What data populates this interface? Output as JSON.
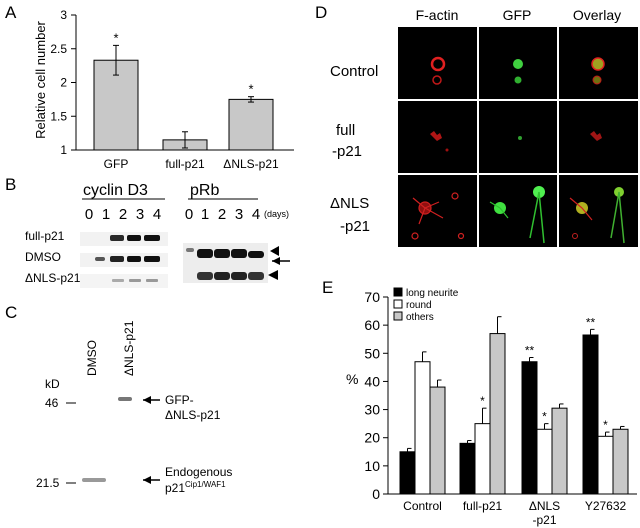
{
  "panels": {
    "A": {
      "letter": "A",
      "ylabel": "Relative cell number",
      "significance": "*"
    },
    "B": {
      "letter": "B",
      "cyclin_title": "cyclin D3",
      "prb_title": "pRb",
      "days_label": "(days)",
      "lane_numbers": [
        "0",
        "1",
        "2",
        "3",
        "4"
      ],
      "row_labels": [
        "full-p21",
        "DMSO",
        "ΔNLS-p21"
      ]
    },
    "C": {
      "letter": "C",
      "lane_dmso": "DMSO",
      "lane_dnls": "ΔNLS-p21",
      "kd_label": "kD",
      "marker_46": "46",
      "marker_21_5": "21.5",
      "band_gfp_line1": "GFP-",
      "band_gfp_line2": "ΔNLS-p21",
      "band_endo_line1": "Endogenous",
      "band_endo_base": "p21",
      "band_endo_sup": "Cip1/WAF1"
    },
    "D": {
      "letter": "D",
      "col_headers": [
        "F-actin",
        "GFP",
        "Overlay"
      ],
      "row_label_control": "Control",
      "row_label_full_1": "full",
      "row_label_full_2": "-p21",
      "row_label_dnls_1": "ΔNLS",
      "row_label_dnls_2": "-p21"
    },
    "E": {
      "letter": "E",
      "ylabel": "%",
      "cat_line1": [
        "Control",
        "full-p21",
        "ΔNLS",
        "Y27632"
      ],
      "cat_line2": [
        "",
        "",
        "-p21",
        ""
      ],
      "stars": {
        "full_round": "*",
        "dnls_long": "**",
        "dnls_round": "*",
        "y_long": "**",
        "y_round": "*"
      }
    }
  },
  "chart_data": [
    {
      "id": "A",
      "type": "bar",
      "categories": [
        "GFP",
        "full-p21",
        "ΔNLS-p21"
      ],
      "values": [
        2.33,
        1.15,
        1.75
      ],
      "errors": [
        0.22,
        0.12,
        0.04
      ],
      "ylabel": "Relative cell number",
      "ylim": [
        1,
        3
      ],
      "yticks": [
        "1",
        "1.5",
        "2",
        "2.5",
        "3"
      ],
      "bar_color": "#c8c8c8"
    },
    {
      "id": "E",
      "type": "bar",
      "categories": [
        "Control",
        "full-p21",
        "ΔNLS-p21",
        "Y27632"
      ],
      "ylabel": "%",
      "ylim": [
        0,
        70
      ],
      "yticks": [
        "0",
        "10",
        "20",
        "30",
        "40",
        "50",
        "60",
        "70"
      ],
      "legend_position": "top-left",
      "series": [
        {
          "name": "long neurite",
          "values": [
            15,
            18,
            47,
            56.5
          ],
          "errors": [
            1.2,
            1,
            1.5,
            2
          ],
          "color": "#000000"
        },
        {
          "name": "round",
          "values": [
            47,
            25,
            23,
            20.5
          ],
          "errors": [
            3.5,
            5.5,
            2,
            1.5
          ],
          "color": "#ffffff"
        },
        {
          "name": "others",
          "values": [
            38,
            57,
            30.5,
            23
          ],
          "errors": [
            2.5,
            6,
            1.5,
            1
          ],
          "color": "#c8c8c8"
        }
      ]
    }
  ]
}
